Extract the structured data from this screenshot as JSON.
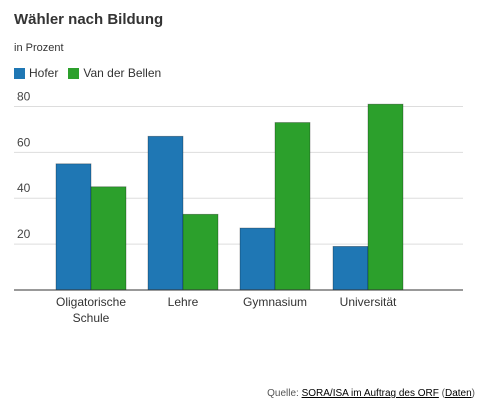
{
  "colors": {
    "Hofer": "#1f77b4",
    "Van der Bellen": "#2ca02c",
    "grid": "#dddddd",
    "axis": "#333333"
  },
  "chart_data": {
    "type": "bar",
    "title": "Wähler nach Bildung",
    "subtitle": "in Prozent",
    "categories": [
      [
        "Oligatorische",
        "Schule"
      ],
      [
        "Lehre"
      ],
      [
        "Gymnasium"
      ],
      [
        "Universität"
      ]
    ],
    "series": [
      {
        "name": "Hofer",
        "values": [
          55,
          67,
          27,
          19
        ]
      },
      {
        "name": "Van der Bellen",
        "values": [
          45,
          33,
          73,
          81
        ]
      }
    ],
    "ylim": [
      0,
      85
    ],
    "yticks": [
      20,
      40,
      60,
      80
    ],
    "grid": true,
    "legend": "top-left",
    "xlabel": "",
    "ylabel": ""
  },
  "source": {
    "prefix": "Quelle: ",
    "link": "SORA/ISA im Auftrag des ORF",
    "open": " (",
    "data_link": "Daten",
    "close": ")"
  }
}
